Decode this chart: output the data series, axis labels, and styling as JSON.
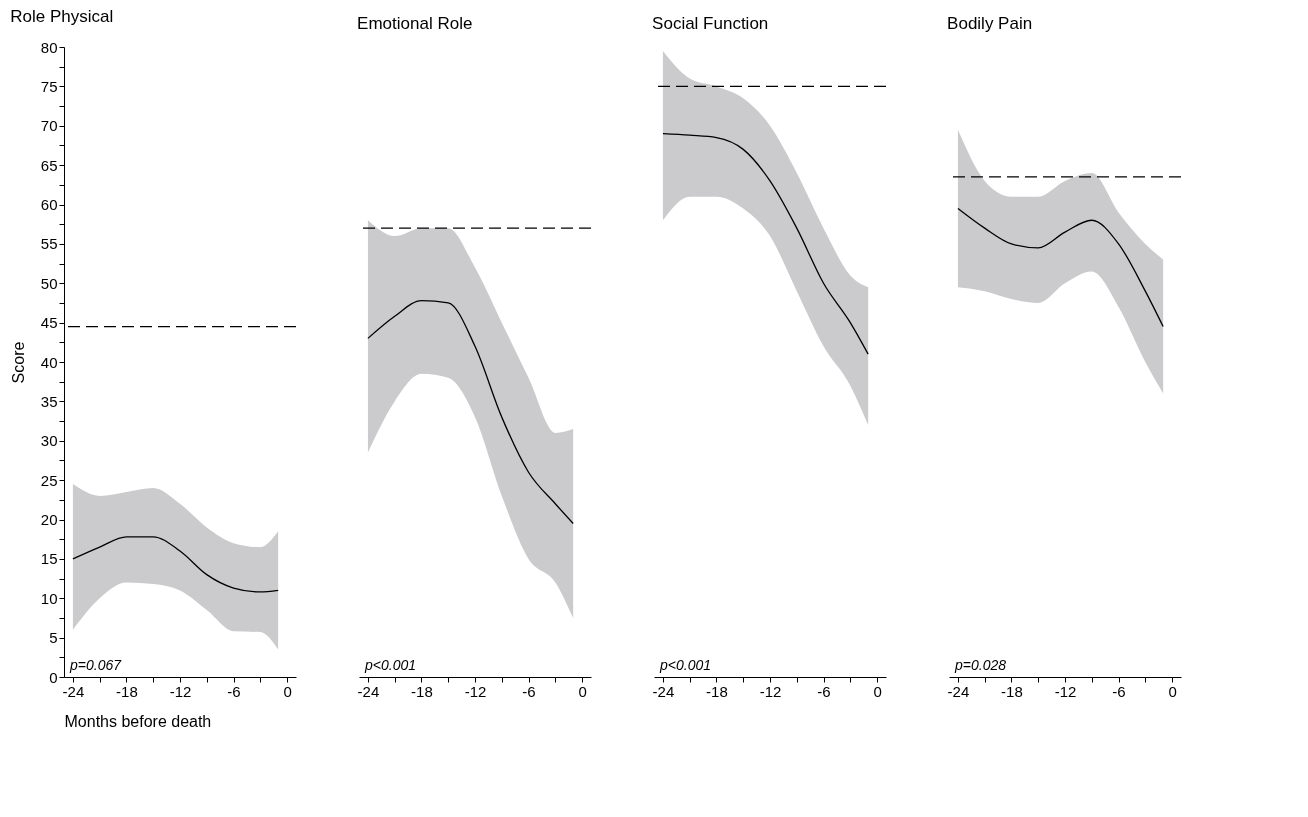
{
  "chart_data": [
    {
      "type": "line",
      "title": "Role Physical",
      "xlabel": "Months before death",
      "ylabel": "Score",
      "xlim": [
        -25,
        1
      ],
      "ylim": [
        0,
        80
      ],
      "xticks": [
        -24,
        {
          "value": -21,
          "label": null
        },
        -18,
        {
          "value": -15,
          "label": null
        },
        -12,
        {
          "value": -9,
          "label": null
        },
        -6,
        {
          "value": -3,
          "label": null
        },
        0
      ],
      "yticks": [
        0,
        {
          "value": 2.5,
          "label": null
        },
        5,
        {
          "value": 7.5,
          "label": null
        },
        10,
        {
          "value": 12.5,
          "label": null
        },
        15,
        {
          "value": 17.5,
          "label": null
        },
        20,
        {
          "value": 22.5,
          "label": null
        },
        25,
        {
          "value": 27.5,
          "label": null
        },
        30,
        {
          "value": 32.5,
          "label": null
        },
        35,
        {
          "value": 37.5,
          "label": null
        },
        40,
        {
          "value": 42.5,
          "label": null
        },
        45,
        {
          "value": 47.5,
          "label": null
        },
        50,
        {
          "value": 52.5,
          "label": null
        },
        55,
        {
          "value": 57.5,
          "label": null
        },
        60,
        {
          "value": 62.5,
          "label": null
        },
        65,
        {
          "value": 67.5,
          "label": null
        },
        70,
        {
          "value": 72.5,
          "label": null
        },
        75,
        {
          "value": 77.5,
          "label": null
        },
        80
      ],
      "x": [
        -24,
        -21,
        -18,
        -15,
        -12,
        -9,
        -6,
        -3,
        -1
      ],
      "series": [
        {
          "color": "#000000",
          "values": [
            15,
            16.5,
            17.8,
            17.8,
            16,
            13,
            11.3,
            10.8,
            11
          ],
          "lower": [
            6,
            10,
            12,
            11.8,
            11,
            8.5,
            5.8,
            5.7,
            3.5
          ],
          "upper": [
            24.5,
            23,
            23.5,
            24,
            22,
            19,
            17,
            16.5,
            18.5
          ]
        }
      ],
      "ref_lines": [
        {
          "axis": "y",
          "value": 44.5,
          "color": "#000000",
          "line_style": "dashed"
        }
      ],
      "annotations": [
        "p=0.067"
      ],
      "grid": false,
      "marker": "none",
      "line_style": "solid"
    },
    {
      "type": "line",
      "title": "Emotional Role",
      "xlim": [
        -25,
        1
      ],
      "ylim": [
        0,
        80
      ],
      "tick_labels": "x",
      "xticks": [
        -24,
        {
          "value": -21,
          "label": null
        },
        -18,
        {
          "value": -15,
          "label": null
        },
        -12,
        {
          "value": -9,
          "label": null
        },
        -6,
        {
          "value": -3,
          "label": null
        },
        0
      ],
      "x": [
        -24,
        -21,
        -18,
        -15,
        -12,
        -9,
        -6,
        -3,
        -1
      ],
      "series": [
        {
          "color": "#000000",
          "values": [
            43,
            45.8,
            47.8,
            47.5,
            42,
            33,
            26,
            22,
            19.5
          ],
          "lower": [
            28.5,
            35,
            38.5,
            38,
            33,
            23,
            15,
            12,
            7.5
          ],
          "upper": [
            58,
            56,
            57,
            57,
            52,
            45,
            38,
            31,
            31.5
          ]
        }
      ],
      "ref_lines": [
        {
          "axis": "y",
          "value": 57,
          "color": "#000000",
          "line_style": "dashed"
        }
      ],
      "annotations": [
        "p<0.001"
      ],
      "grid": false,
      "marker": "none",
      "line_style": "solid"
    },
    {
      "type": "line",
      "title": "Social Function",
      "xlim": [
        -25,
        1
      ],
      "ylim": [
        0,
        80
      ],
      "tick_labels": "x",
      "xticks": [
        -24,
        {
          "value": -21,
          "label": null
        },
        -18,
        {
          "value": -15,
          "label": null
        },
        -12,
        {
          "value": -9,
          "label": null
        },
        -6,
        {
          "value": -3,
          "label": null
        },
        0
      ],
      "x": [
        -24,
        -21,
        -18,
        -15,
        -12,
        -9,
        -6,
        -3,
        -1
      ],
      "series": [
        {
          "color": "#000000",
          "values": [
            69,
            68.8,
            68.5,
            67,
            63,
            57,
            50,
            45,
            41
          ],
          "lower": [
            58,
            61,
            61,
            59.5,
            56,
            49,
            42,
            37,
            32
          ],
          "upper": [
            79.5,
            76,
            75,
            73.5,
            70,
            64,
            57,
            51,
            49.5
          ]
        }
      ],
      "ref_lines": [
        {
          "axis": "y",
          "value": 75,
          "color": "#000000",
          "line_style": "dashed"
        }
      ],
      "annotations": [
        "p<0.001"
      ],
      "grid": false,
      "marker": "none",
      "line_style": "solid"
    },
    {
      "type": "line",
      "title": "Bodily Pain",
      "xlim": [
        -25,
        1
      ],
      "ylim": [
        0,
        80
      ],
      "tick_labels": "x",
      "xticks": [
        -24,
        {
          "value": -21,
          "label": null
        },
        -18,
        {
          "value": -15,
          "label": null
        },
        -12,
        {
          "value": -9,
          "label": null
        },
        -6,
        {
          "value": -3,
          "label": null
        },
        0
      ],
      "x": [
        -24,
        -21,
        -18,
        -15,
        -12,
        -9,
        -6,
        -3,
        -1
      ],
      "series": [
        {
          "color": "#000000",
          "values": [
            59.5,
            57,
            55,
            54.5,
            56.5,
            58,
            55,
            49,
            44.5
          ],
          "lower": [
            49.5,
            49,
            48,
            47.5,
            50,
            51.5,
            47,
            40,
            36
          ],
          "upper": [
            69.5,
            63,
            61,
            61,
            63,
            64,
            59,
            55,
            53
          ]
        }
      ],
      "ref_lines": [
        {
          "axis": "y",
          "value": 63.5,
          "color": "#000000",
          "line_style": "dashed"
        }
      ],
      "annotations": [
        "p=0.028"
      ],
      "grid": false,
      "marker": "none",
      "line_style": "solid"
    }
  ]
}
